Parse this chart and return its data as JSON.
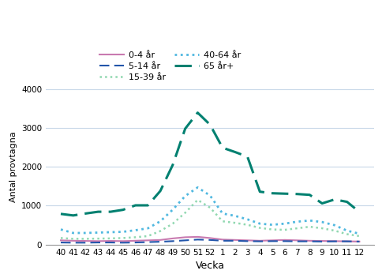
{
  "x_labels": [
    "40",
    "41",
    "42",
    "43",
    "44",
    "45",
    "46",
    "47",
    "48",
    "49",
    "50",
    "51",
    "52",
    "1",
    "2",
    "3",
    "4",
    "5",
    "6",
    "7",
    "8",
    "9",
    "10",
    "11",
    "12"
  ],
  "series_order": [
    "0-4 år",
    "5-14 år",
    "15-39 år",
    "40-64 år",
    "65 år+"
  ],
  "series": {
    "0-4 år": {
      "values": [
        110,
        100,
        95,
        90,
        95,
        90,
        100,
        110,
        120,
        160,
        190,
        200,
        170,
        130,
        120,
        110,
        100,
        110,
        120,
        110,
        100,
        95,
        90,
        85,
        80
      ],
      "color": "#c87ab0",
      "linestyle": "solid",
      "linewidth": 1.5
    },
    "5-14 år": {
      "values": [
        55,
        50,
        50,
        55,
        55,
        50,
        55,
        65,
        75,
        90,
        110,
        130,
        120,
        100,
        100,
        90,
        85,
        90,
        90,
        85,
        85,
        80,
        85,
        85,
        80
      ],
      "color": "#2255aa",
      "linestyle": "dashed",
      "linewidth": 1.5
    },
    "15-39 år": {
      "values": [
        170,
        150,
        150,
        155,
        160,
        170,
        190,
        220,
        350,
        540,
        820,
        1150,
        950,
        600,
        560,
        510,
        430,
        390,
        380,
        420,
        460,
        420,
        360,
        270,
        220
      ],
      "color": "#90d8b0",
      "linestyle": "dotted",
      "linewidth": 1.8
    },
    "40-64 år": {
      "values": [
        390,
        300,
        300,
        310,
        320,
        330,
        370,
        420,
        600,
        900,
        1250,
        1470,
        1260,
        800,
        740,
        650,
        540,
        510,
        540,
        590,
        620,
        580,
        500,
        360,
        280
      ],
      "color": "#50b8e0",
      "linestyle": "dotted",
      "linewidth": 2.0
    },
    "65 år+": {
      "values": [
        790,
        750,
        800,
        845,
        845,
        895,
        1010,
        1010,
        1380,
        2050,
        2980,
        3390,
        3080,
        2490,
        2380,
        2260,
        1360,
        1320,
        1310,
        1300,
        1280,
        1060,
        1160,
        1100,
        840
      ],
      "color": "#008070",
      "linestyle": "dashed",
      "linewidth": 2.2
    }
  },
  "ylabel": "Antal provtagna",
  "xlabel": "Vecka",
  "ylim": [
    0,
    4000
  ],
  "yticks": [
    0,
    1000,
    2000,
    3000,
    4000
  ],
  "background_color": "#ffffff",
  "grid_color": "#c8d8e8"
}
